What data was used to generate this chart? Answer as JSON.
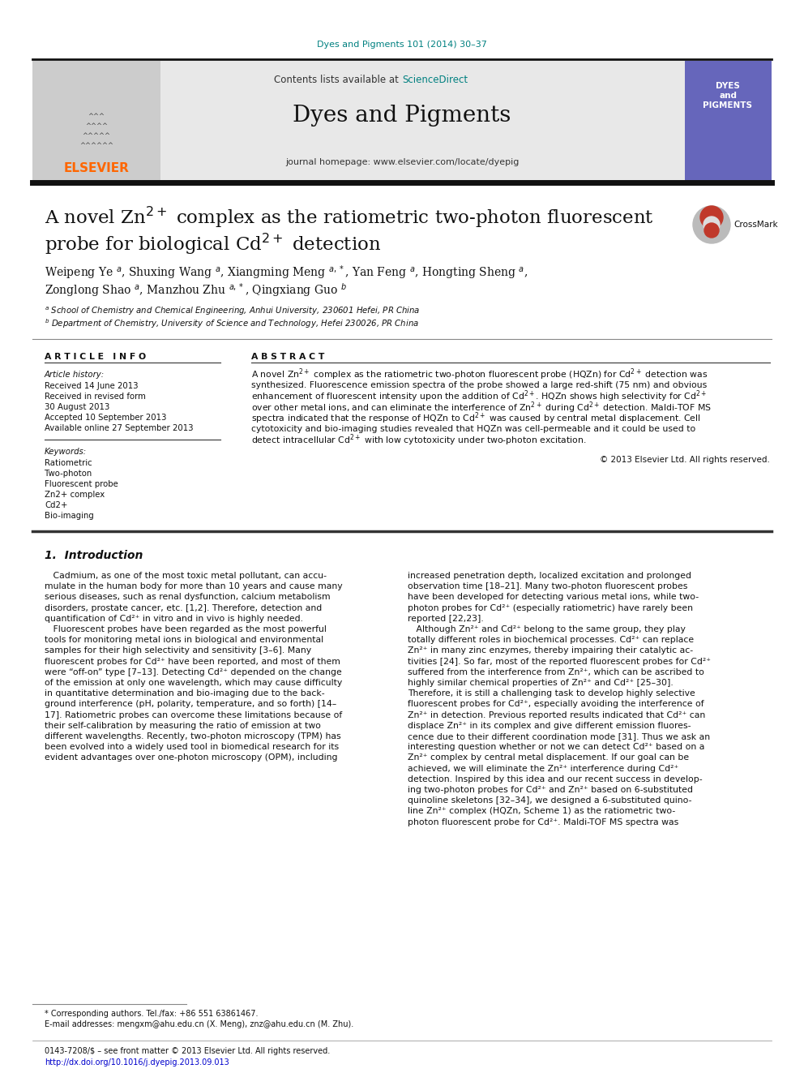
{
  "page_bg": "#ffffff",
  "header_journal_text": "Dyes and Pigments 101 (2014) 30–37",
  "header_journal_color": "#008080",
  "journal_name": "Dyes and Pigments",
  "header_bar_color": "#1a1a1a",
  "contents_text": "Contents lists available at ",
  "sciencedirect_text": "ScienceDirect",
  "sciencedirect_color": "#008080",
  "journal_homepage": "journal homepage: www.elsevier.com/locate/dyepig",
  "elsevier_color": "#FF6600",
  "header_bg": "#e8e8e8",
  "article_info_header": "A R T I C L E   I N F O",
  "abstract_header": "A B S T R A C T",
  "article_history_label": "Article history:",
  "received": "Received 14 June 2013",
  "received_revised": "Received in revised form",
  "revised_date": "30 August 2013",
  "accepted": "Accepted 10 September 2013",
  "available": "Available online 27 September 2013",
  "keywords_label": "Keywords:",
  "keywords": [
    "Ratiometric",
    "Two-photon",
    "Fluorescent probe",
    "Zn2+ complex",
    "Cd2+",
    "Bio-imaging"
  ],
  "copyright": "© 2013 Elsevier Ltd. All rights reserved.",
  "section1_title": "1.  Introduction",
  "footnote_star": "* Corresponding authors. Tel./fax: +86 551 63861467.",
  "footnote_email": "E-mail addresses: mengxm@ahu.edu.cn (X. Meng), znz@ahu.edu.cn (M. Zhu).",
  "footer_issn": "0143-7208/$ – see front matter © 2013 Elsevier Ltd. All rights reserved.",
  "footer_doi": "http://dx.doi.org/10.1016/j.dyepig.2013.09.013",
  "footer_doi_color": "#0000CC"
}
